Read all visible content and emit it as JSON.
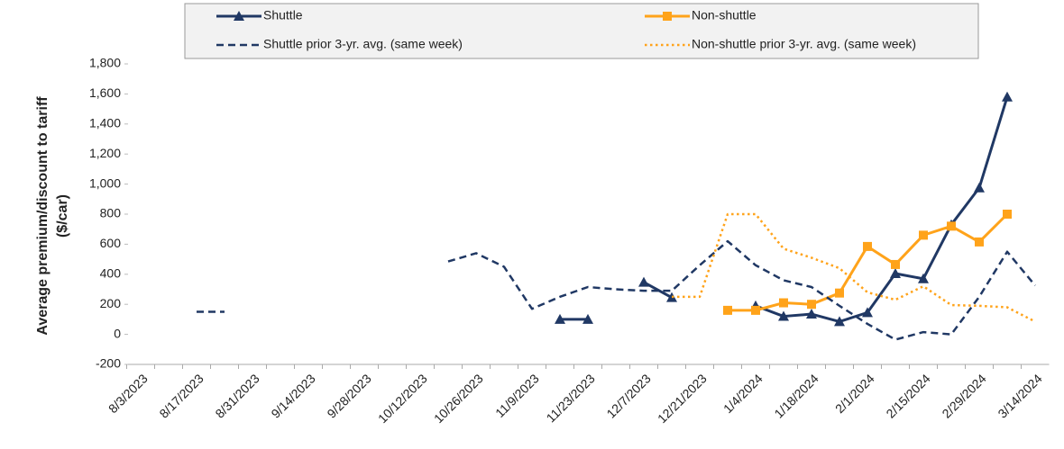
{
  "chart_data": {
    "type": "line",
    "y_label": [
      "Average premium/discount to tariff",
      "($/car)"
    ],
    "categories": [
      "8/3/2023",
      null,
      "8/17/2023",
      null,
      "8/31/2023",
      null,
      "9/14/2023",
      null,
      "9/28/2023",
      null,
      "10/12/2023",
      null,
      "10/26/2023",
      null,
      "11/9/2023",
      null,
      "11/23/2023",
      null,
      "12/7/2023",
      null,
      "12/21/2023",
      null,
      "1/4/2024",
      null,
      "1/18/2024",
      null,
      "2/1/2024",
      null,
      "2/15/2024",
      null,
      "2/29/2024",
      null,
      "3/14/2024"
    ],
    "series": [
      {
        "name": "Shuttle",
        "color": "#203864",
        "marker": "triangle",
        "dash": "solid",
        "values": [
          null,
          null,
          null,
          null,
          null,
          null,
          null,
          null,
          null,
          null,
          null,
          null,
          null,
          null,
          null,
          100,
          100,
          null,
          347,
          245,
          null,
          null,
          190,
          120,
          135,
          85,
          145,
          405,
          370,
          730,
          975,
          1580,
          null
        ]
      },
      {
        "name": "Non-shuttle",
        "color": "#ffa31a",
        "marker": "square",
        "dash": "solid",
        "values": [
          null,
          null,
          null,
          null,
          null,
          null,
          null,
          null,
          null,
          null,
          null,
          null,
          null,
          null,
          null,
          null,
          null,
          null,
          null,
          null,
          null,
          160,
          160,
          210,
          200,
          275,
          585,
          465,
          660,
          720,
          615,
          800,
          null
        ]
      },
      {
        "name": "Shuttle prior 3-yr. avg. (same week)",
        "color": "#203864",
        "marker": "none",
        "dash": "dashed",
        "values": [
          null,
          null,
          150,
          150,
          null,
          null,
          null,
          null,
          null,
          null,
          null,
          485,
          540,
          450,
          170,
          250,
          315,
          300,
          290,
          290,
          460,
          620,
          460,
          360,
          315,
          190,
          70,
          -35,
          15,
          0,
          250,
          550,
          325
        ]
      },
      {
        "name": "Non-shuttle prior 3-yr. avg. (same week)",
        "color": "#ffa31a",
        "marker": "none",
        "dash": "dotted",
        "values": [
          null,
          null,
          null,
          null,
          null,
          null,
          null,
          null,
          null,
          null,
          null,
          null,
          null,
          null,
          null,
          null,
          null,
          null,
          null,
          250,
          250,
          800,
          800,
          570,
          510,
          440,
          280,
          230,
          320,
          195,
          190,
          180,
          85
        ]
      }
    ],
    "ylim": [
      -200,
      1800
    ],
    "yticks": [
      -200,
      0,
      200,
      400,
      600,
      800,
      {
        "value": 1000,
        "label": "1,000"
      },
      {
        "value": 1200,
        "label": "1,200"
      },
      {
        "value": 1400,
        "label": "1,400"
      },
      {
        "value": 1600,
        "label": "1,600"
      },
      {
        "value": 1800,
        "label": "1,800"
      }
    ],
    "legend": "top"
  }
}
